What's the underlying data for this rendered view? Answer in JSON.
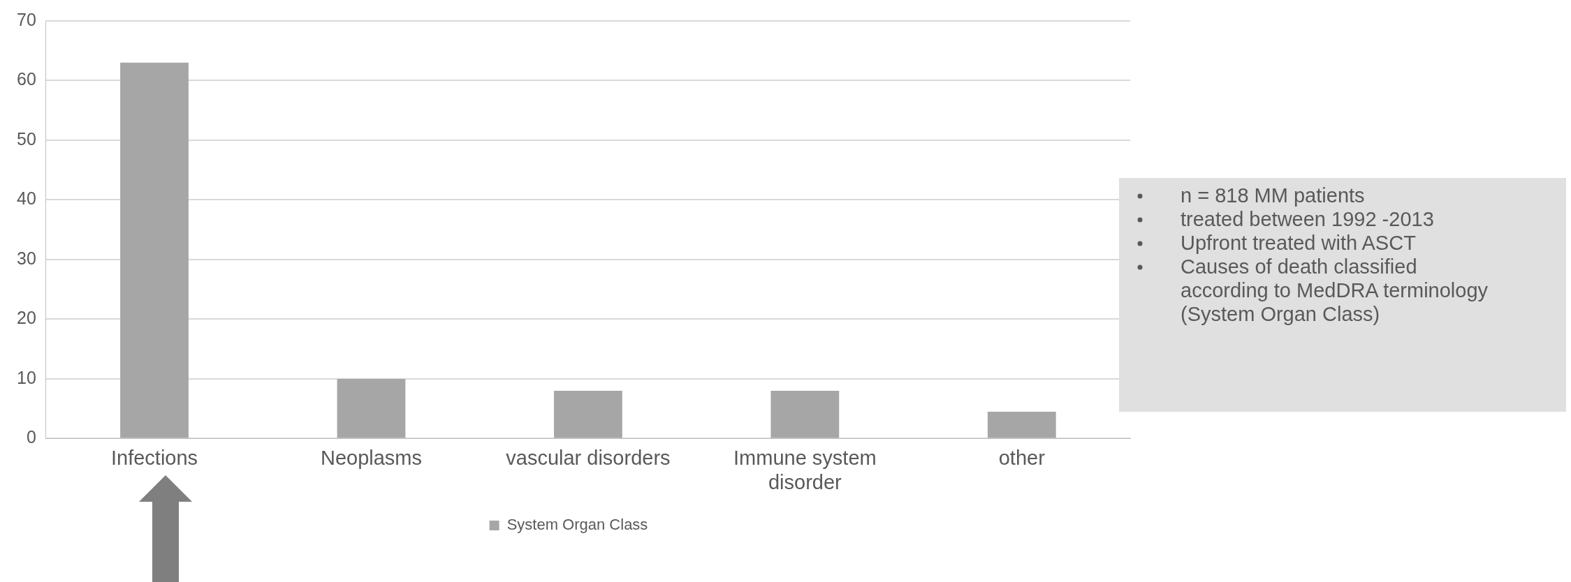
{
  "chart_data": {
    "type": "bar",
    "categories": [
      "Infections",
      "Neoplasms",
      "vascular disorders",
      "Immune system disorder",
      "other"
    ],
    "series": [
      {
        "name": "System Organ Class",
        "color": "#a6a6a6",
        "values": [
          63,
          10,
          8,
          8,
          4.5
        ]
      }
    ],
    "ylim": [
      0,
      70
    ],
    "yticks": [
      0,
      10,
      20,
      30,
      40,
      50,
      60,
      70
    ],
    "grid": "y",
    "legend": "bottom",
    "annotations": [
      "n = 818 MM patients",
      "treated between 1992 -2013",
      "Upfront treated with ASCT",
      "Causes of death classified according to MedDRA terminology (System Organ Class)"
    ]
  }
}
